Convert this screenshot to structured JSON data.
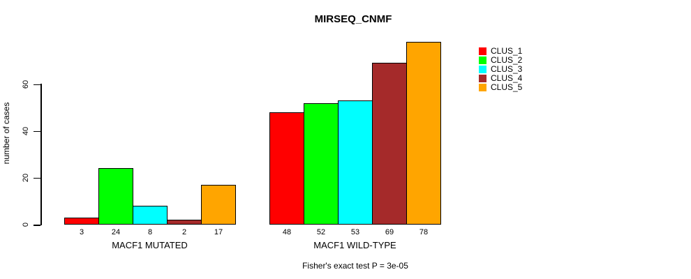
{
  "chart_data": {
    "type": "bar",
    "title": "MIRSEQ_CNMF",
    "xlabel": "",
    "ylabel": "number of cases",
    "yticks": [
      0,
      20,
      40,
      60
    ],
    "ylim": [
      0,
      78
    ],
    "grid": false,
    "legend_position": "right-outside",
    "categories": [
      "MACF1 MUTATED",
      "MACF1 WILD-TYPE"
    ],
    "series": [
      {
        "name": "CLUS_1",
        "color": "#FF0000",
        "values": [
          3,
          48
        ]
      },
      {
        "name": "CLUS_2",
        "color": "#00FF00",
        "values": [
          24,
          52
        ]
      },
      {
        "name": "CLUS_3",
        "color": "#00FFFF",
        "values": [
          8,
          53
        ]
      },
      {
        "name": "CLUS_4",
        "color": "#A52A2A",
        "values": [
          2,
          69
        ]
      },
      {
        "name": "CLUS_5",
        "color": "#FFA500",
        "values": [
          17,
          78
        ]
      }
    ],
    "show_bar_values": true,
    "annotation": "Fisher's exact test P = 3e-05"
  },
  "colors": {
    "background": "#FFFFFF",
    "axis": "#000000",
    "text": "#000000",
    "bar_border": "#000000"
  }
}
